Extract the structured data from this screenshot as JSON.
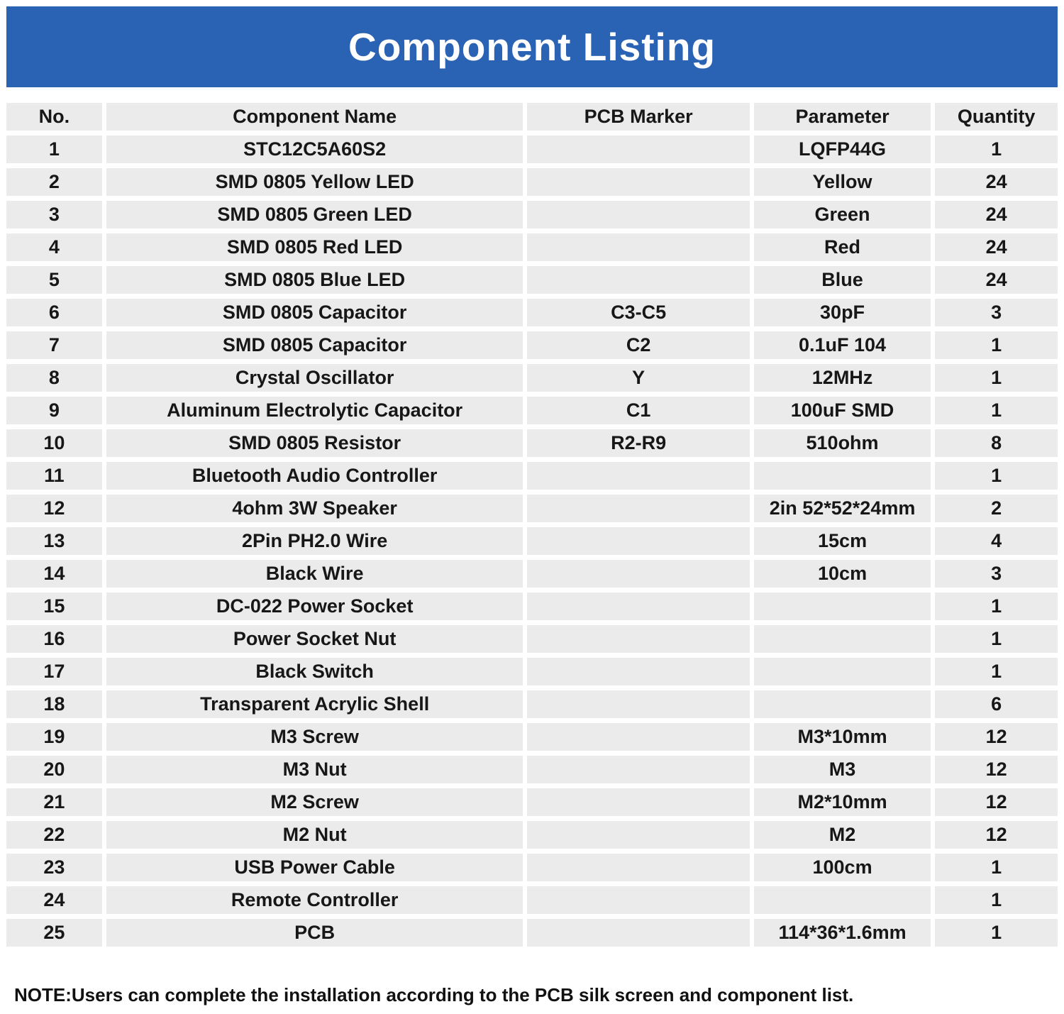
{
  "title": "Component Listing",
  "note": "NOTE:Users can complete the installation according to the PCB silk screen and component list.",
  "colors": {
    "banner_blue": "#2a62b4",
    "cell_gray": "#ebebeb",
    "text_black": "#171717"
  },
  "table": {
    "columns": [
      "No.",
      "Component Name",
      "PCB Marker",
      "Parameter",
      "Quantity"
    ],
    "rows": [
      [
        "1",
        "STC12C5A60S2",
        "",
        "LQFP44G",
        "1"
      ],
      [
        "2",
        "SMD 0805 Yellow LED",
        "",
        "Yellow",
        "24"
      ],
      [
        "3",
        "SMD 0805 Green LED",
        "",
        "Green",
        "24"
      ],
      [
        "4",
        "SMD 0805 Red LED",
        "",
        "Red",
        "24"
      ],
      [
        "5",
        "SMD 0805 Blue LED",
        "",
        "Blue",
        "24"
      ],
      [
        "6",
        "SMD 0805 Capacitor",
        "C3-C5",
        "30pF",
        "3"
      ],
      [
        "7",
        "SMD 0805 Capacitor",
        "C2",
        "0.1uF 104",
        "1"
      ],
      [
        "8",
        "Crystal Oscillator",
        "Y",
        "12MHz",
        "1"
      ],
      [
        "9",
        "Aluminum Electrolytic Capacitor",
        "C1",
        "100uF SMD",
        "1"
      ],
      [
        "10",
        "SMD 0805 Resistor",
        "R2-R9",
        "510ohm",
        "8"
      ],
      [
        "11",
        "Bluetooth Audio Controller",
        "",
        "",
        "1"
      ],
      [
        "12",
        "4ohm 3W Speaker",
        "",
        "2in 52*52*24mm",
        "2"
      ],
      [
        "13",
        "2Pin PH2.0 Wire",
        "",
        "15cm",
        "4"
      ],
      [
        "14",
        "Black Wire",
        "",
        "10cm",
        "3"
      ],
      [
        "15",
        "DC-022 Power Socket",
        "",
        "",
        "1"
      ],
      [
        "16",
        "Power Socket Nut",
        "",
        "",
        "1"
      ],
      [
        "17",
        "Black Switch",
        "",
        "",
        "1"
      ],
      [
        "18",
        "Transparent Acrylic Shell",
        "",
        "",
        "6"
      ],
      [
        "19",
        "M3 Screw",
        "",
        "M3*10mm",
        "12"
      ],
      [
        "20",
        "M3 Nut",
        "",
        "M3",
        "12"
      ],
      [
        "21",
        "M2 Screw",
        "",
        "M2*10mm",
        "12"
      ],
      [
        "22",
        "M2 Nut",
        "",
        "M2",
        "12"
      ],
      [
        "23",
        "USB Power Cable",
        "",
        "100cm",
        "1"
      ],
      [
        "24",
        "Remote Controller",
        "",
        "",
        "1"
      ],
      [
        "25",
        "PCB",
        "",
        "114*36*1.6mm",
        "1"
      ]
    ]
  }
}
